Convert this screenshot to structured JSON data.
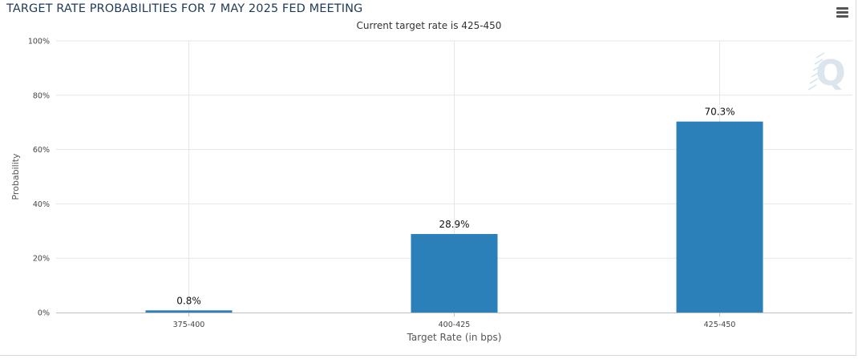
{
  "header": {
    "title": "TARGET RATE PROBABILITIES FOR 7 MAY 2025 FED MEETING",
    "subtitle": "Current target rate is 425-450",
    "menu_icon": "hamburger-menu-icon",
    "watermark_icon": "q-logo-icon"
  },
  "colors": {
    "bar": "#2b80b9",
    "grid": "#e6e6e6",
    "title": "#1f3b57"
  },
  "chart_data": {
    "type": "bar",
    "title": "TARGET RATE PROBABILITIES FOR 7 MAY 2025 FED MEETING",
    "subtitle": "Current target rate is 425-450",
    "xlabel": "Target Rate (in bps)",
    "ylabel": "Probability",
    "categories": [
      "375-400",
      "400-425",
      "425-450"
    ],
    "values": [
      0.8,
      28.9,
      70.3
    ],
    "data_labels": [
      "0.8%",
      "28.9%",
      "70.3%"
    ],
    "ylim": [
      0,
      100
    ],
    "yticks": [
      "0%",
      "20%",
      "40%",
      "60%",
      "80%",
      "100%"
    ],
    "grid": true,
    "legend": "none"
  }
}
